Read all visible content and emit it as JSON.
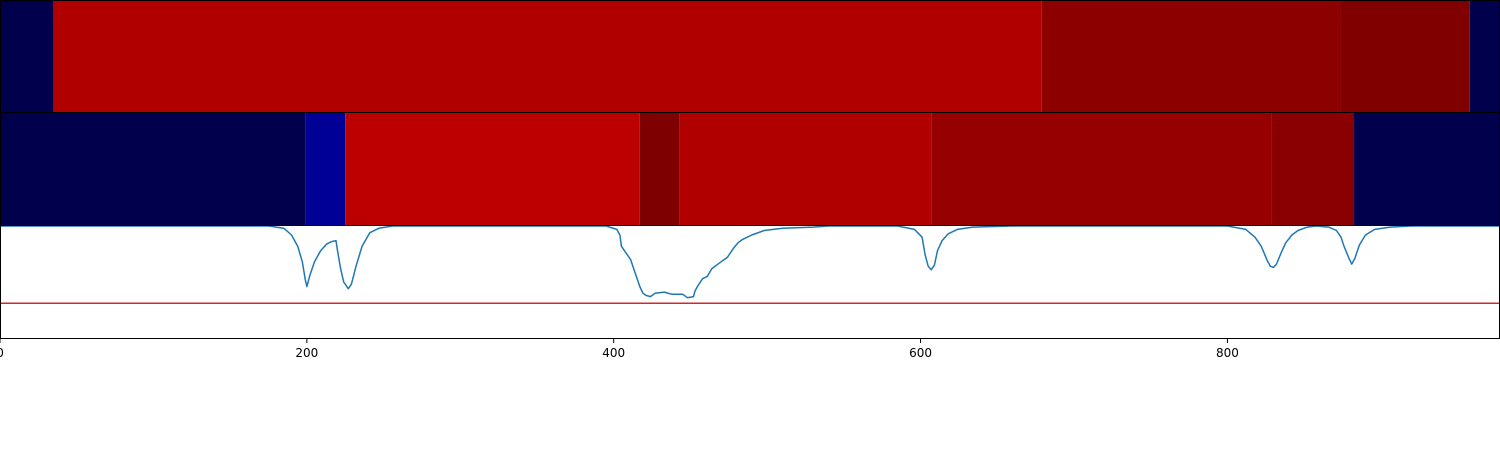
{
  "chart_data": {
    "type": "heatmap",
    "x_ticks": [
      0,
      200,
      400,
      600,
      800
    ],
    "xlim": [
      0,
      977
    ],
    "panels": [
      {
        "kind": "segments",
        "segments": [
          {
            "start": 0,
            "end": 35,
            "color": "#00004d"
          },
          {
            "start": 35,
            "end": 679,
            "color": "#b00000"
          },
          {
            "start": 679,
            "end": 874,
            "color": "#8c0000"
          },
          {
            "start": 874,
            "end": 958,
            "color": "#800000"
          },
          {
            "start": 958,
            "end": 977,
            "color": "#00004d"
          }
        ]
      },
      {
        "kind": "segments",
        "segments": [
          {
            "start": 0,
            "end": 199,
            "color": "#00004d"
          },
          {
            "start": 199,
            "end": 225,
            "color": "#000096"
          },
          {
            "start": 225,
            "end": 417,
            "color": "#bc0000"
          },
          {
            "start": 417,
            "end": 443,
            "color": "#7e0000"
          },
          {
            "start": 443,
            "end": 607,
            "color": "#b00000"
          },
          {
            "start": 607,
            "end": 829,
            "color": "#960000"
          },
          {
            "start": 829,
            "end": 882,
            "color": "#8a0000"
          },
          {
            "start": 882,
            "end": 977,
            "color": "#00004d"
          }
        ]
      },
      {
        "kind": "line",
        "ylim": [
          0,
          1
        ],
        "line_color": "#1f77b4",
        "threshold": 0.31,
        "threshold_color": "#d62728",
        "series_points": [
          [
            0,
            1.0
          ],
          [
            175,
            1.0
          ],
          [
            185,
            0.98
          ],
          [
            190,
            0.92
          ],
          [
            194,
            0.82
          ],
          [
            197,
            0.68
          ],
          [
            199,
            0.52
          ],
          [
            200,
            0.46
          ],
          [
            202,
            0.56
          ],
          [
            205,
            0.68
          ],
          [
            209,
            0.78
          ],
          [
            213,
            0.84
          ],
          [
            216,
            0.86
          ],
          [
            219,
            0.87
          ],
          [
            220,
            0.78
          ],
          [
            222,
            0.62
          ],
          [
            224,
            0.5
          ],
          [
            227,
            0.44
          ],
          [
            229,
            0.48
          ],
          [
            232,
            0.64
          ],
          [
            236,
            0.82
          ],
          [
            241,
            0.94
          ],
          [
            247,
            0.98
          ],
          [
            256,
            1.0
          ],
          [
            395,
            1.0
          ],
          [
            402,
            0.97
          ],
          [
            404,
            0.92
          ],
          [
            405,
            0.82
          ],
          [
            408,
            0.76
          ],
          [
            411,
            0.7
          ],
          [
            413,
            0.62
          ],
          [
            415,
            0.54
          ],
          [
            417,
            0.46
          ],
          [
            419,
            0.4
          ],
          [
            421,
            0.38
          ],
          [
            424,
            0.37
          ],
          [
            427,
            0.4
          ],
          [
            433,
            0.41
          ],
          [
            438,
            0.39
          ],
          [
            445,
            0.39
          ],
          [
            448,
            0.36
          ],
          [
            452,
            0.37
          ],
          [
            453,
            0.42
          ],
          [
            455,
            0.47
          ],
          [
            458,
            0.53
          ],
          [
            461,
            0.55
          ],
          [
            464,
            0.62
          ],
          [
            467,
            0.65
          ],
          [
            471,
            0.69
          ],
          [
            474,
            0.72
          ],
          [
            478,
            0.8
          ],
          [
            481,
            0.85
          ],
          [
            484,
            0.88
          ],
          [
            490,
            0.92
          ],
          [
            498,
            0.96
          ],
          [
            510,
            0.98
          ],
          [
            530,
            0.99
          ],
          [
            540,
            1.0
          ],
          [
            585,
            1.0
          ],
          [
            596,
            0.97
          ],
          [
            601,
            0.9
          ],
          [
            603,
            0.74
          ],
          [
            605,
            0.64
          ],
          [
            607,
            0.61
          ],
          [
            609,
            0.65
          ],
          [
            611,
            0.78
          ],
          [
            614,
            0.87
          ],
          [
            618,
            0.93
          ],
          [
            624,
            0.97
          ],
          [
            634,
            0.99
          ],
          [
            660,
            1.0
          ],
          [
            800,
            1.0
          ],
          [
            812,
            0.97
          ],
          [
            818,
            0.9
          ],
          [
            822,
            0.82
          ],
          [
            826,
            0.69
          ],
          [
            828,
            0.64
          ],
          [
            830,
            0.63
          ],
          [
            832,
            0.66
          ],
          [
            835,
            0.76
          ],
          [
            838,
            0.85
          ],
          [
            842,
            0.92
          ],
          [
            846,
            0.96
          ],
          [
            852,
            0.99
          ],
          [
            858,
            1.0
          ],
          [
            866,
            0.99
          ],
          [
            871,
            0.96
          ],
          [
            874,
            0.9
          ],
          [
            876,
            0.82
          ],
          [
            879,
            0.72
          ],
          [
            881,
            0.66
          ],
          [
            883,
            0.71
          ],
          [
            886,
            0.83
          ],
          [
            890,
            0.92
          ],
          [
            896,
            0.97
          ],
          [
            906,
            0.99
          ],
          [
            920,
            1.0
          ],
          [
            977,
            1.0
          ]
        ]
      }
    ]
  }
}
